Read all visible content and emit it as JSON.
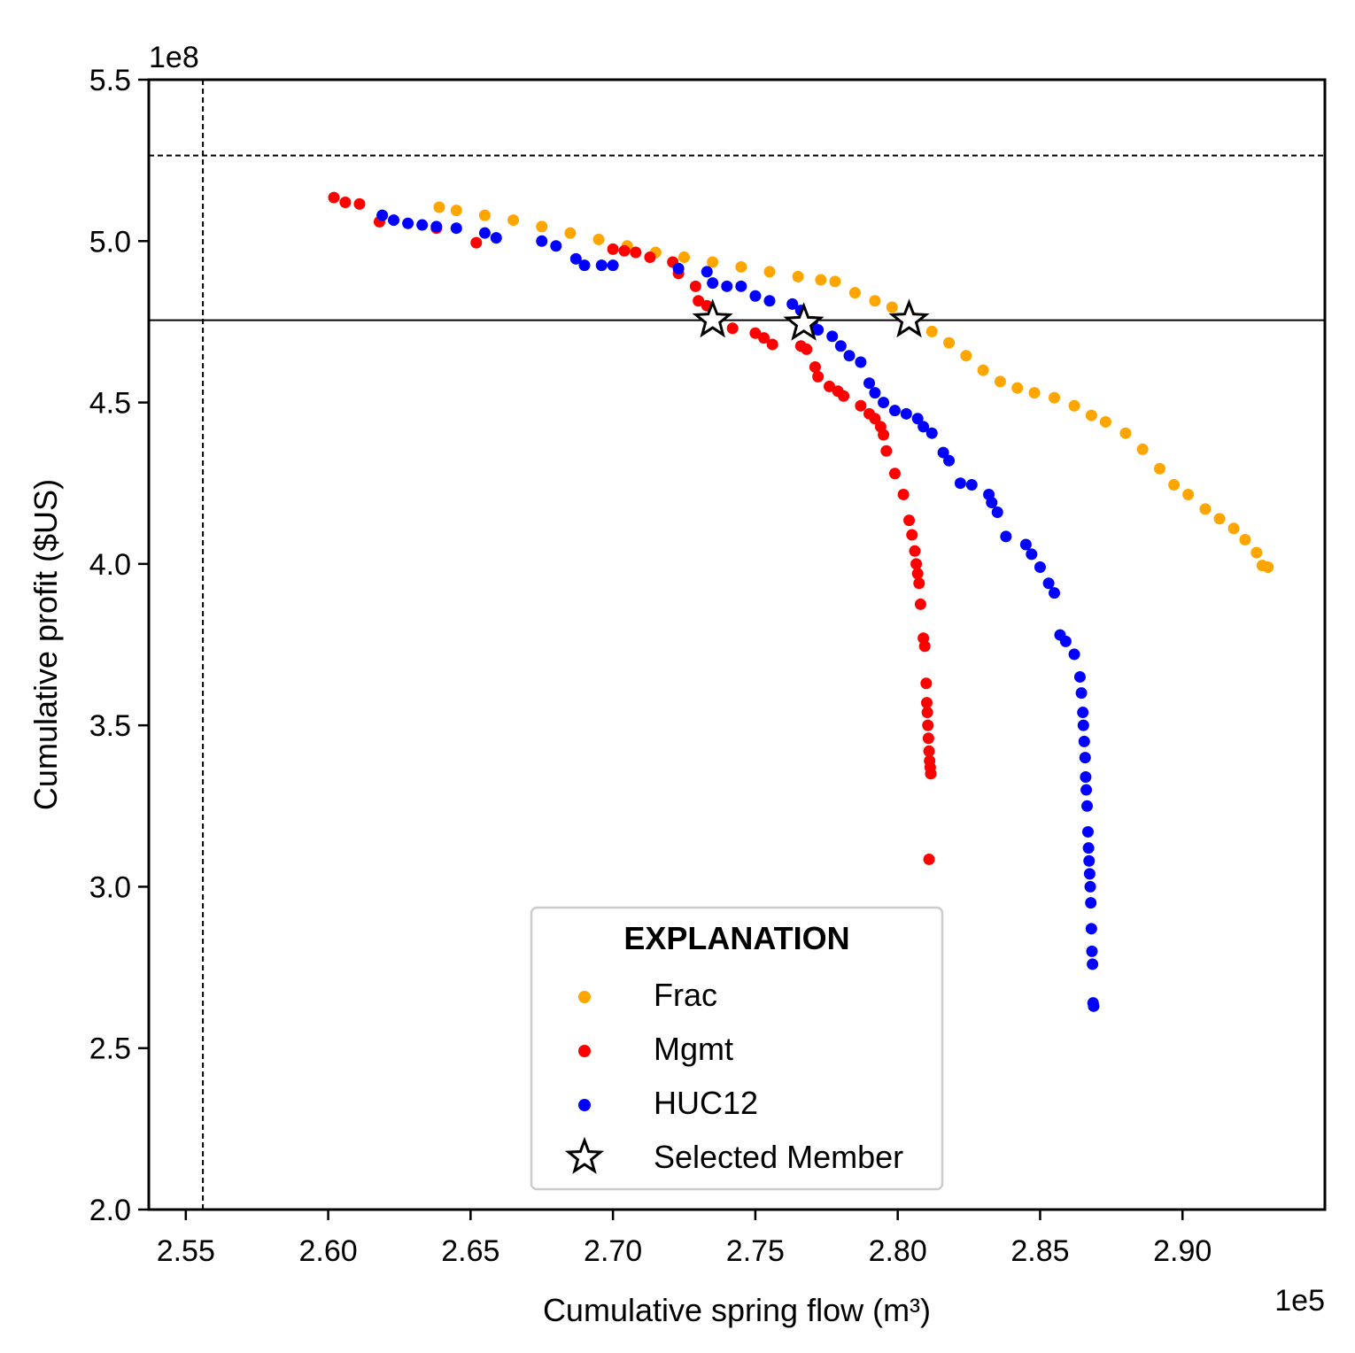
{
  "chart_data": {
    "type": "scatter",
    "xlabel": "Cumulative spring flow (m³)",
    "ylabel": "Cumulative profit ($US)",
    "x_offset_label": "1e5",
    "y_offset_label": "1e8",
    "x_scale": 100000,
    "y_scale": 100000000,
    "xlim": [
      2.537,
      2.95
    ],
    "ylim": [
      2.0,
      5.5
    ],
    "x_ticks": [
      "2.55",
      "2.60",
      "2.65",
      "2.70",
      "2.75",
      "2.80",
      "2.85",
      "2.90"
    ],
    "y_ticks": [
      "2.0",
      "2.5",
      "3.0",
      "3.5",
      "4.0",
      "4.5",
      "5.0",
      "5.5"
    ],
    "reference_lines": {
      "vertical_dashed_x": 2.556,
      "horizontal_dashed_y": 5.265,
      "horizontal_solid_y": 4.755
    },
    "legend": {
      "title": "EXPLANATION",
      "placement": "lower-center",
      "entries": [
        "Frac",
        "Mgmt",
        "HUC12",
        "Selected Member"
      ]
    },
    "series": [
      {
        "name": "Frac",
        "color": "#FFA500",
        "points": [
          [
            2.639,
            5.105
          ],
          [
            2.645,
            5.095
          ],
          [
            2.655,
            5.08
          ],
          [
            2.665,
            5.065
          ],
          [
            2.675,
            5.045
          ],
          [
            2.685,
            5.025
          ],
          [
            2.695,
            5.005
          ],
          [
            2.705,
            4.985
          ],
          [
            2.715,
            4.965
          ],
          [
            2.725,
            4.95
          ],
          [
            2.735,
            4.935
          ],
          [
            2.745,
            4.92
          ],
          [
            2.755,
            4.905
          ],
          [
            2.765,
            4.89
          ],
          [
            2.773,
            4.88
          ],
          [
            2.778,
            4.875
          ],
          [
            2.785,
            4.84
          ],
          [
            2.792,
            4.815
          ],
          [
            2.798,
            4.795
          ],
          [
            2.805,
            4.765
          ],
          [
            2.812,
            4.72
          ],
          [
            2.818,
            4.685
          ],
          [
            2.824,
            4.645
          ],
          [
            2.83,
            4.6
          ],
          [
            2.836,
            4.565
          ],
          [
            2.842,
            4.545
          ],
          [
            2.848,
            4.53
          ],
          [
            2.855,
            4.515
          ],
          [
            2.862,
            4.49
          ],
          [
            2.868,
            4.46
          ],
          [
            2.873,
            4.44
          ],
          [
            2.88,
            4.405
          ],
          [
            2.886,
            4.355
          ],
          [
            2.892,
            4.295
          ],
          [
            2.897,
            4.245
          ],
          [
            2.902,
            4.215
          ],
          [
            2.908,
            4.17
          ],
          [
            2.913,
            4.14
          ],
          [
            2.918,
            4.11
          ],
          [
            2.922,
            4.075
          ],
          [
            2.926,
            4.035
          ],
          [
            2.928,
            3.995
          ],
          [
            2.93,
            3.99
          ]
        ]
      },
      {
        "name": "Mgmt",
        "color": "#FF0000",
        "points": [
          [
            2.602,
            5.135
          ],
          [
            2.606,
            5.12
          ],
          [
            2.611,
            5.115
          ],
          [
            2.618,
            5.06
          ],
          [
            2.638,
            5.04
          ],
          [
            2.652,
            4.995
          ],
          [
            2.7,
            4.975
          ],
          [
            2.704,
            4.97
          ],
          [
            2.708,
            4.965
          ],
          [
            2.713,
            4.95
          ],
          [
            2.721,
            4.935
          ],
          [
            2.723,
            4.9
          ],
          [
            2.729,
            4.86
          ],
          [
            2.73,
            4.815
          ],
          [
            2.733,
            4.8
          ],
          [
            2.742,
            4.73
          ],
          [
            2.75,
            4.715
          ],
          [
            2.753,
            4.7
          ],
          [
            2.756,
            4.68
          ],
          [
            2.766,
            4.675
          ],
          [
            2.768,
            4.665
          ],
          [
            2.771,
            4.61
          ],
          [
            2.772,
            4.58
          ],
          [
            2.776,
            4.55
          ],
          [
            2.779,
            4.535
          ],
          [
            2.781,
            4.52
          ],
          [
            2.787,
            4.49
          ],
          [
            2.79,
            4.465
          ],
          [
            2.792,
            4.45
          ],
          [
            2.794,
            4.425
          ],
          [
            2.795,
            4.4
          ],
          [
            2.796,
            4.35
          ],
          [
            2.799,
            4.28
          ],
          [
            2.802,
            4.215
          ],
          [
            2.804,
            4.135
          ],
          [
            2.805,
            4.09
          ],
          [
            2.806,
            4.04
          ],
          [
            2.8065,
            4.0
          ],
          [
            2.807,
            3.97
          ],
          [
            2.8075,
            3.94
          ],
          [
            2.808,
            3.875
          ],
          [
            2.809,
            3.77
          ],
          [
            2.8095,
            3.745
          ],
          [
            2.81,
            3.63
          ],
          [
            2.8102,
            3.57
          ],
          [
            2.8104,
            3.54
          ],
          [
            2.8106,
            3.5
          ],
          [
            2.8108,
            3.46
          ],
          [
            2.811,
            3.42
          ],
          [
            2.8112,
            3.39
          ],
          [
            2.8114,
            3.37
          ],
          [
            2.8116,
            3.35
          ],
          [
            2.811,
            3.085
          ]
        ]
      },
      {
        "name": "HUC12",
        "color": "#0000FF",
        "points": [
          [
            2.619,
            5.08
          ],
          [
            2.623,
            5.065
          ],
          [
            2.628,
            5.055
          ],
          [
            2.633,
            5.05
          ],
          [
            2.638,
            5.045
          ],
          [
            2.645,
            5.04
          ],
          [
            2.655,
            5.025
          ],
          [
            2.659,
            5.01
          ],
          [
            2.675,
            5.0
          ],
          [
            2.68,
            4.985
          ],
          [
            2.687,
            4.945
          ],
          [
            2.69,
            4.925
          ],
          [
            2.696,
            4.925
          ],
          [
            2.7,
            4.925
          ],
          [
            2.723,
            4.915
          ],
          [
            2.733,
            4.905
          ],
          [
            2.735,
            4.87
          ],
          [
            2.74,
            4.86
          ],
          [
            2.745,
            4.86
          ],
          [
            2.75,
            4.83
          ],
          [
            2.755,
            4.815
          ],
          [
            2.763,
            4.805
          ],
          [
            2.766,
            4.785
          ],
          [
            2.77,
            4.75
          ],
          [
            2.772,
            4.725
          ],
          [
            2.777,
            4.705
          ],
          [
            2.78,
            4.675
          ],
          [
            2.783,
            4.645
          ],
          [
            2.787,
            4.625
          ],
          [
            2.79,
            4.56
          ],
          [
            2.792,
            4.53
          ],
          [
            2.795,
            4.5
          ],
          [
            2.799,
            4.475
          ],
          [
            2.803,
            4.465
          ],
          [
            2.807,
            4.45
          ],
          [
            2.809,
            4.425
          ],
          [
            2.812,
            4.405
          ],
          [
            2.816,
            4.345
          ],
          [
            2.818,
            4.32
          ],
          [
            2.822,
            4.25
          ],
          [
            2.826,
            4.245
          ],
          [
            2.832,
            4.215
          ],
          [
            2.833,
            4.19
          ],
          [
            2.835,
            4.16
          ],
          [
            2.838,
            4.085
          ],
          [
            2.845,
            4.06
          ],
          [
            2.847,
            4.03
          ],
          [
            2.85,
            3.99
          ],
          [
            2.853,
            3.94
          ],
          [
            2.855,
            3.91
          ],
          [
            2.857,
            3.78
          ],
          [
            2.859,
            3.76
          ],
          [
            2.862,
            3.72
          ],
          [
            2.864,
            3.65
          ],
          [
            2.8645,
            3.6
          ],
          [
            2.865,
            3.54
          ],
          [
            2.8652,
            3.5
          ],
          [
            2.8655,
            3.45
          ],
          [
            2.8658,
            3.4
          ],
          [
            2.866,
            3.34
          ],
          [
            2.8662,
            3.3
          ],
          [
            2.8665,
            3.25
          ],
          [
            2.8668,
            3.17
          ],
          [
            2.867,
            3.12
          ],
          [
            2.8672,
            3.08
          ],
          [
            2.8674,
            3.04
          ],
          [
            2.8676,
            3.0
          ],
          [
            2.8678,
            2.95
          ],
          [
            2.868,
            2.87
          ],
          [
            2.8682,
            2.8
          ],
          [
            2.8684,
            2.76
          ],
          [
            2.8686,
            2.64
          ],
          [
            2.8688,
            2.63
          ]
        ]
      },
      {
        "name": "Selected Member",
        "marker": "star",
        "points": [
          [
            2.735,
            4.755
          ],
          [
            2.767,
            4.745
          ],
          [
            2.804,
            4.755
          ]
        ]
      }
    ]
  }
}
